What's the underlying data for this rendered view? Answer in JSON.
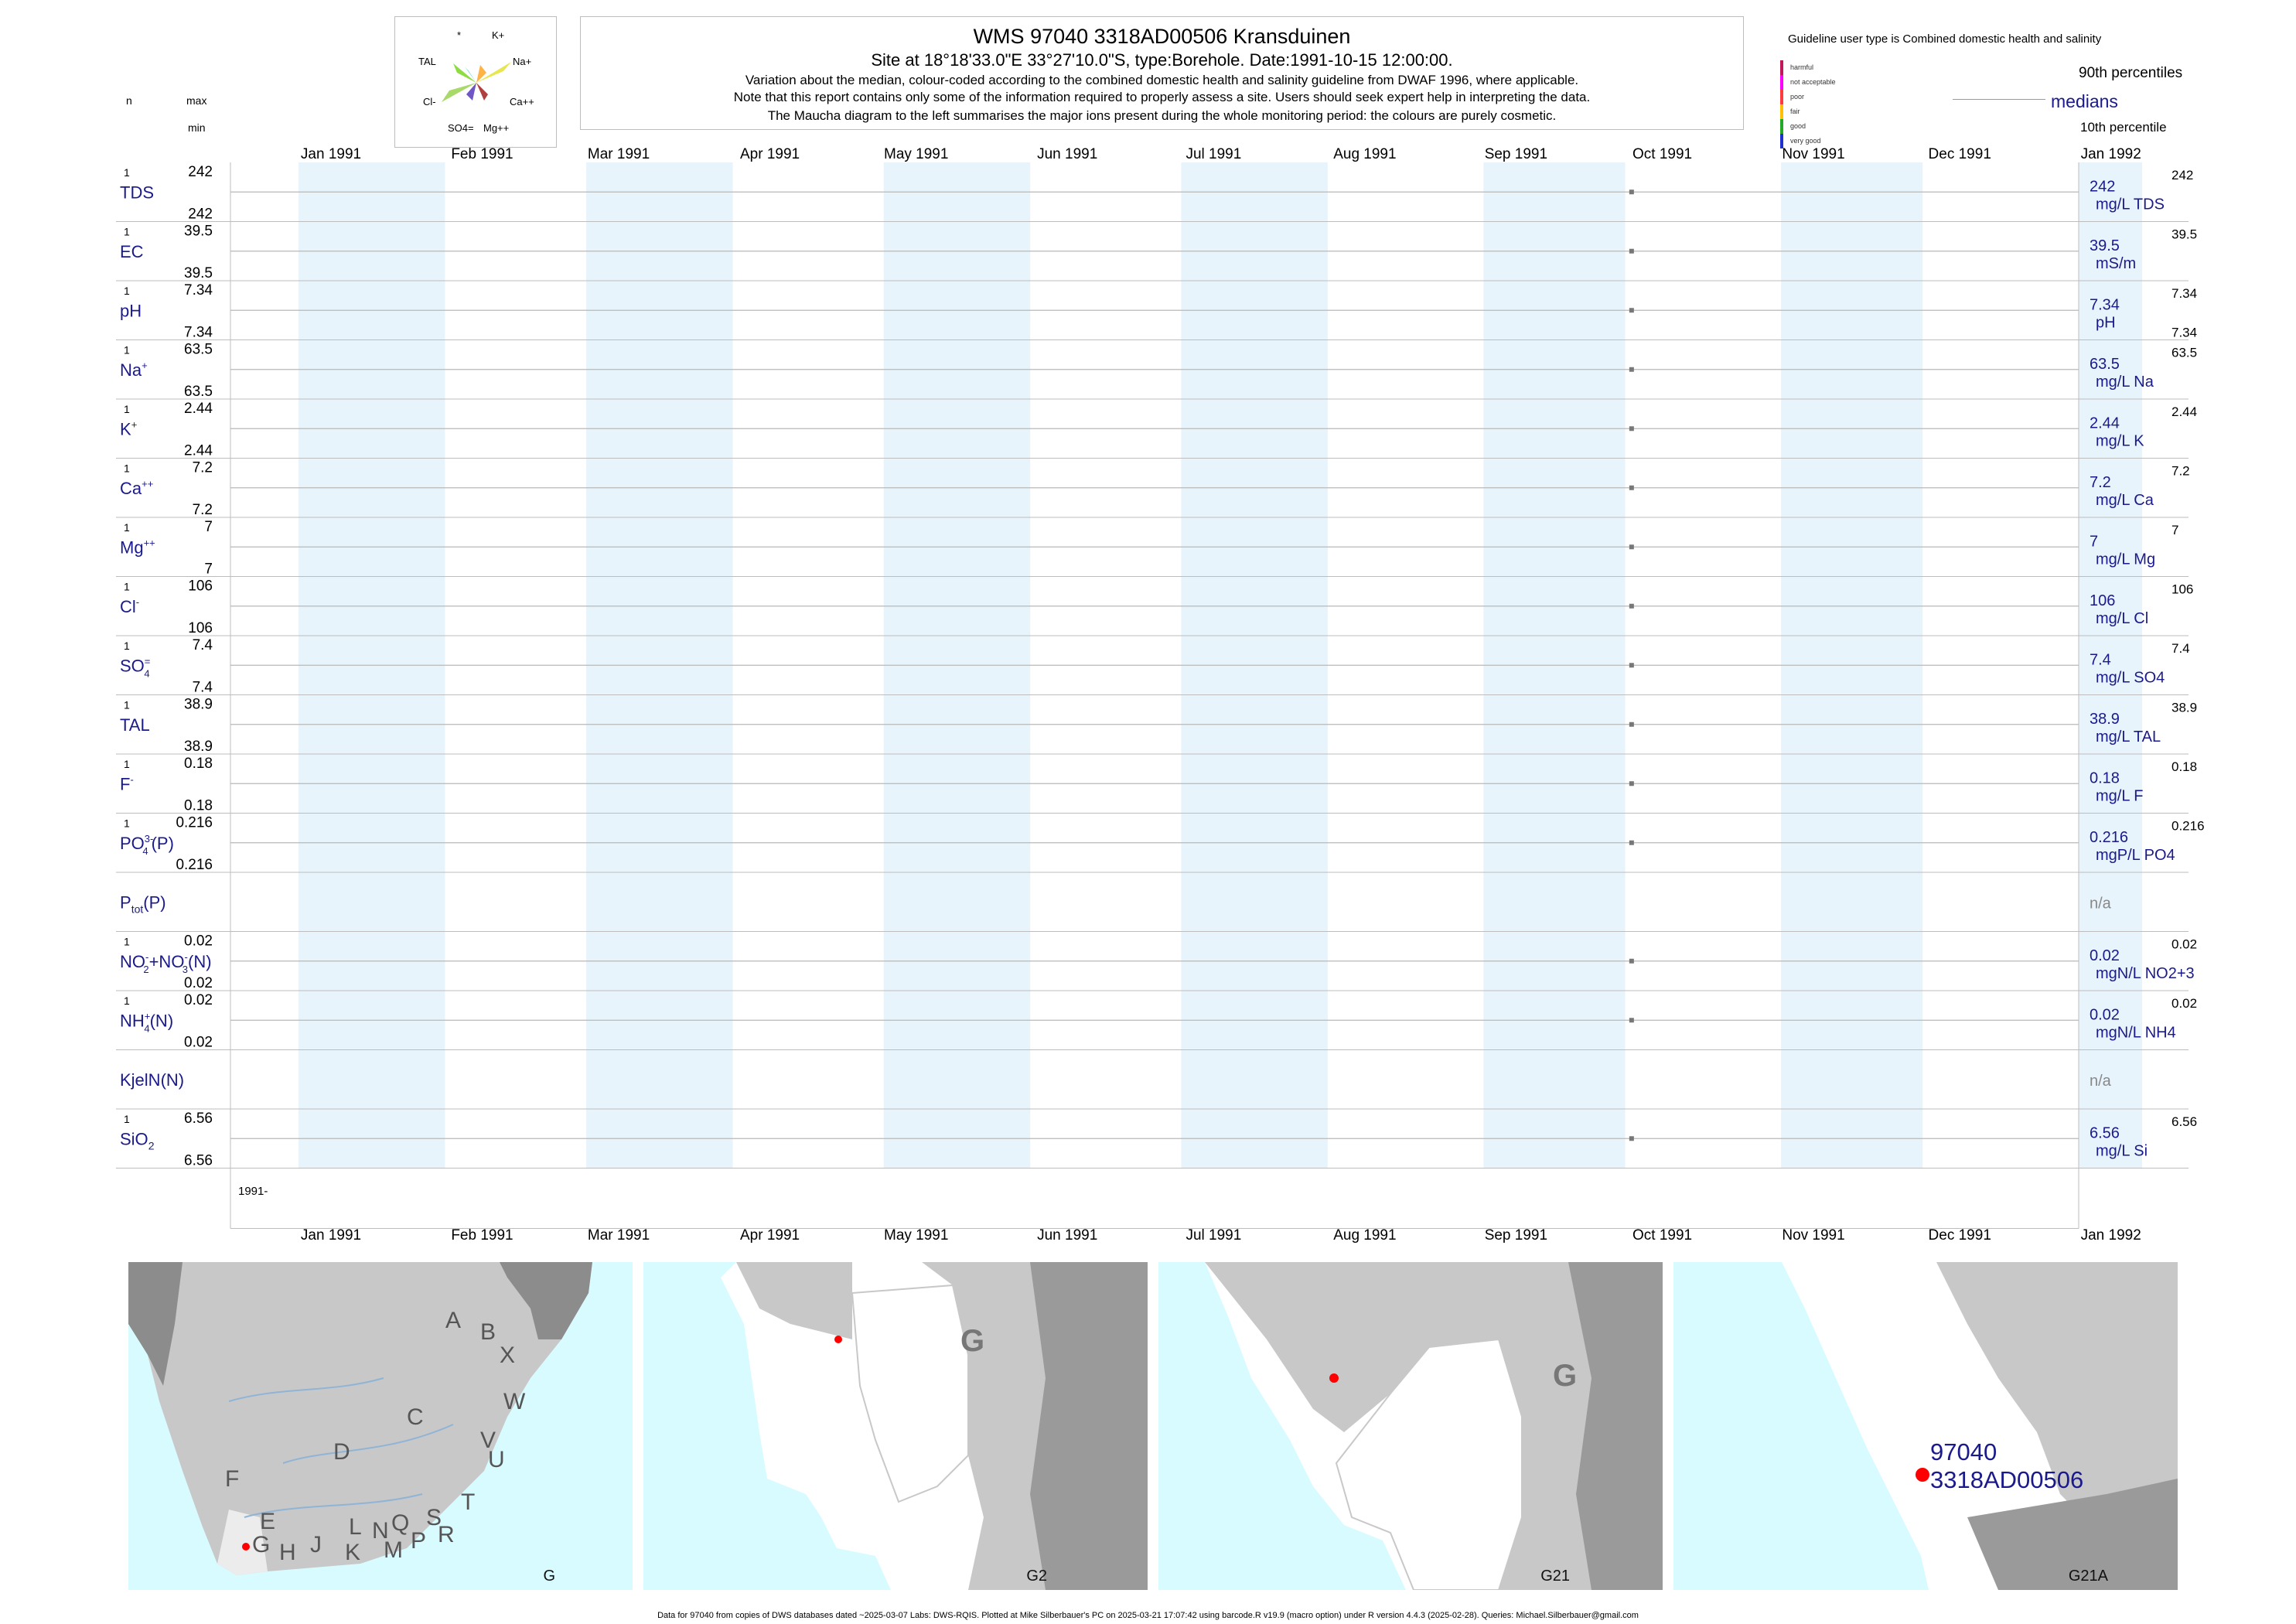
{
  "header": {
    "title": "WMS 97040 3318AD00506 Kransduinen",
    "subtitle": "Site at 18°18'33.0\"E 33°27'10.0\"S, type:Borehole. Date:1991-10-15 12:00:00.",
    "note1": "Variation about the median,  colour-coded according to the combined domestic health and salinity guideline from DWAF 1996, where applicable.",
    "note2": "Note that this report contains only some of the information required to properly assess a site. Users should seek expert help in interpreting the data.",
    "note3": "The Maucha diagram to the left summarises the major ions present during the whole monitoring period: the colours are purely cosmetic."
  },
  "left_header": {
    "n": "n",
    "max": "max",
    "min": "min"
  },
  "maucha": {
    "labels": [
      "*",
      "K+",
      "TAL",
      "Na+",
      "Cl-",
      "Ca++",
      "SO4=",
      "Mg++"
    ]
  },
  "guideline": {
    "title": "Guideline user type is Combined domestic health and salinity",
    "levels": [
      {
        "label": "harmful",
        "color": "#c2185b"
      },
      {
        "label": "not acceptable",
        "color": "#ff00ff"
      },
      {
        "label": "poor",
        "color": "#ff3b3b"
      },
      {
        "label": "fair",
        "color": "#ffc000"
      },
      {
        "label": "good",
        "color": "#22aa22"
      },
      {
        "label": "very good",
        "color": "#1f2fd1"
      }
    ],
    "p90": "90th percentiles",
    "medians": "medians",
    "p10": "10th percentile"
  },
  "chart_data": {
    "type": "scatter",
    "x_axis_months": [
      "Jan 1991",
      "Feb 1991",
      "Mar 1991",
      "Apr 1991",
      "May 1991",
      "Jun 1991",
      "Jul 1991",
      "Aug 1991",
      "Sep 1991",
      "Oct 1991",
      "Nov 1991",
      "Dec 1991",
      "Jan 1992"
    ],
    "sample_date": "1991-10-15",
    "year_label": "1991-",
    "point_color": "#777777",
    "series": [
      {
        "name": "TDS",
        "n": "1",
        "max": "242",
        "min": "242",
        "median": "242",
        "unit": "mg/L TDS",
        "right_top": "242",
        "right_bottom": ""
      },
      {
        "name": "EC",
        "n": "1",
        "max": "39.5",
        "min": "39.5",
        "median": "39.5",
        "unit": "mS/m",
        "right_top": "39.5",
        "right_bottom": ""
      },
      {
        "name": "pH",
        "n": "1",
        "max": "7.34",
        "min": "7.34",
        "median": "7.34",
        "unit": "pH",
        "right_top": "7.34",
        "right_bottom": "7.34"
      },
      {
        "name": "Na+",
        "n": "1",
        "max": "63.5",
        "min": "63.5",
        "median": "63.5",
        "unit": "mg/L Na",
        "right_top": "63.5",
        "right_bottom": ""
      },
      {
        "name": "K+",
        "n": "1",
        "max": "2.44",
        "min": "2.44",
        "median": "2.44",
        "unit": "mg/L K",
        "right_top": "2.44",
        "right_bottom": ""
      },
      {
        "name": "Ca++",
        "n": "1",
        "max": "7.2",
        "min": "7.2",
        "median": "7.2",
        "unit": "mg/L Ca",
        "right_top": "7.2",
        "right_bottom": ""
      },
      {
        "name": "Mg++",
        "n": "1",
        "max": "7",
        "min": "7",
        "median": "7",
        "unit": "mg/L Mg",
        "right_top": "7",
        "right_bottom": ""
      },
      {
        "name": "Cl-",
        "n": "1",
        "max": "106",
        "min": "106",
        "median": "106",
        "unit": "mg/L Cl",
        "right_top": "106",
        "right_bottom": ""
      },
      {
        "name": "SO4=",
        "n": "1",
        "max": "7.4",
        "min": "7.4",
        "median": "7.4",
        "unit": "mg/L SO4",
        "right_top": "7.4",
        "right_bottom": ""
      },
      {
        "name": "TAL",
        "n": "1",
        "max": "38.9",
        "min": "38.9",
        "median": "38.9",
        "unit": "mg/L TAL",
        "right_top": "38.9",
        "right_bottom": ""
      },
      {
        "name": "F-",
        "n": "1",
        "max": "0.18",
        "min": "0.18",
        "median": "0.18",
        "unit": "mg/L F",
        "right_top": "0.18",
        "right_bottom": ""
      },
      {
        "name": "PO43-(P)",
        "n": "1",
        "max": "0.216",
        "min": "0.216",
        "median": "0.216",
        "unit": "mgP/L PO4",
        "right_top": "0.216",
        "right_bottom": ""
      },
      {
        "name": "Ptot(P)",
        "n": "",
        "max": "",
        "min": "",
        "median": "n/a",
        "unit": "",
        "right_top": "",
        "right_bottom": ""
      },
      {
        "name": "NO2-+NO3-(N)",
        "n": "1",
        "max": "0.02",
        "min": "0.02",
        "median": "0.02",
        "unit": "mgN/L NO2+3",
        "right_top": "0.02",
        "right_bottom": ""
      },
      {
        "name": "NH4+(N)",
        "n": "1",
        "max": "0.02",
        "min": "0.02",
        "median": "0.02",
        "unit": "mgN/L NH4",
        "right_top": "0.02",
        "right_bottom": ""
      },
      {
        "name": "KjelN(N)",
        "n": "",
        "max": "",
        "min": "",
        "median": "n/a",
        "unit": "",
        "right_top": "",
        "right_bottom": ""
      },
      {
        "name": "SiO2",
        "n": "1",
        "max": "6.56",
        "min": "6.56",
        "median": "6.56",
        "unit": "mg/L Si",
        "right_top": "6.56",
        "right_bottom": ""
      }
    ]
  },
  "maps": [
    {
      "label": "G"
    },
    {
      "label": "G2",
      "region": "G"
    },
    {
      "label": "G21",
      "region": "G"
    },
    {
      "label": "G21A",
      "site_id": "97040",
      "site_code": "3318AD00506"
    }
  ],
  "map_letters": [
    "A",
    "B",
    "X",
    "W",
    "C",
    "V",
    "U",
    "D",
    "T",
    "F",
    "E",
    "S",
    "R",
    "Q",
    "N",
    "P",
    "L",
    "M",
    "J",
    "K",
    "H",
    "G"
  ],
  "colors": {
    "navy_text": "#1a1a8c",
    "band": "#e8f4fc",
    "sea": "#d8fbff",
    "land": "#c8c8c8",
    "dark_land": "#8c8c8c",
    "site": "#ff0000"
  },
  "footer": "Data for 97040 from copies of DWS databases dated ~2025-03-07 Labs: DWS-RQIS. Plotted at Mike Silberbauer's PC on 2025-03-21 17:07:42 using barcode.R v19.9 (macro option) under R version 4.4.3 (2025-02-28). Queries: Michael.Silberbauer@gmail.com"
}
